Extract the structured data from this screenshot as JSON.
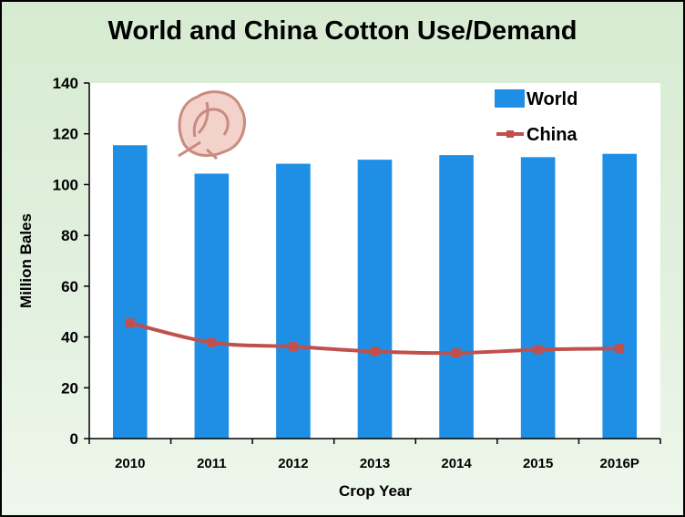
{
  "chart_data": {
    "type": "bar",
    "title": "World and China Cotton Use/Demand",
    "xlabel": "Crop Year",
    "ylabel": "Million Bales",
    "categories": [
      "2010",
      "2011",
      "2012",
      "2013",
      "2014",
      "2015",
      "2016P"
    ],
    "ylim": [
      0,
      140
    ],
    "yticks": [
      "0",
      "20",
      "40",
      "60",
      "80",
      "100",
      "120",
      "140"
    ],
    "grid": false,
    "legend_position": "top-right",
    "series": [
      {
        "name": "World",
        "kind": "bar",
        "color": "#1f8fe6",
        "values": [
          115.5,
          104.3,
          108.2,
          109.8,
          111.6,
          110.8,
          112.1
        ]
      },
      {
        "name": "China",
        "kind": "line",
        "color": "#c0504d",
        "values": [
          45.5,
          37.8,
          36.2,
          34.3,
          33.7,
          35.0,
          35.5
        ]
      }
    ],
    "decoration": "cotton-boll-icon"
  }
}
